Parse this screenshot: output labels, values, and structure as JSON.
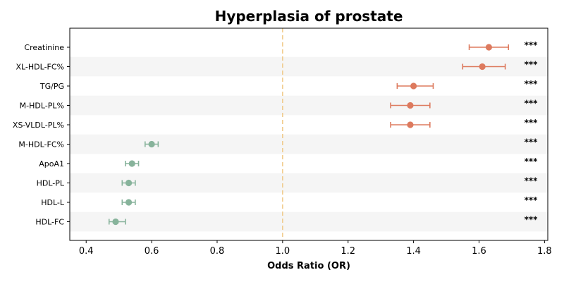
{
  "chart_data": {
    "type": "forest",
    "title": "Hyperplasia of prostate",
    "xlabel": "Odds Ratio (OR)",
    "xlim": [
      0.35,
      1.81
    ],
    "xticks": [
      "0.4",
      "0.6",
      "0.8",
      "1.0",
      "1.2",
      "1.4",
      "1.6",
      "1.8"
    ],
    "reference_line": 1.0,
    "grid": false,
    "row_shading": "alternating",
    "colors": {
      "risk": "#dd7a5e",
      "protective": "#87b39b",
      "reference_line": "#f0c987",
      "row_band": "#f5f5f5"
    },
    "rows": [
      {
        "label": "Creatinine",
        "or": 1.63,
        "lower": 1.57,
        "upper": 1.69,
        "sig": "***"
      },
      {
        "label": "XL-HDL-FC%",
        "or": 1.61,
        "lower": 1.55,
        "upper": 1.68,
        "sig": "***"
      },
      {
        "label": "TG/PG",
        "or": 1.4,
        "lower": 1.35,
        "upper": 1.46,
        "sig": "***"
      },
      {
        "label": "M-HDL-PL%",
        "or": 1.39,
        "lower": 1.33,
        "upper": 1.45,
        "sig": "***"
      },
      {
        "label": "XS-VLDL-PL%",
        "or": 1.39,
        "lower": 1.33,
        "upper": 1.45,
        "sig": "***"
      },
      {
        "label": "M-HDL-FC%",
        "or": 0.6,
        "lower": 0.58,
        "upper": 0.62,
        "sig": "***"
      },
      {
        "label": "ApoA1",
        "or": 0.54,
        "lower": 0.52,
        "upper": 0.56,
        "sig": "***"
      },
      {
        "label": "HDL-PL",
        "or": 0.53,
        "lower": 0.51,
        "upper": 0.55,
        "sig": "***"
      },
      {
        "label": "HDL-L",
        "or": 0.53,
        "lower": 0.51,
        "upper": 0.55,
        "sig": "***"
      },
      {
        "label": "HDL-FC",
        "or": 0.49,
        "lower": 0.47,
        "upper": 0.52,
        "sig": "***"
      }
    ]
  }
}
